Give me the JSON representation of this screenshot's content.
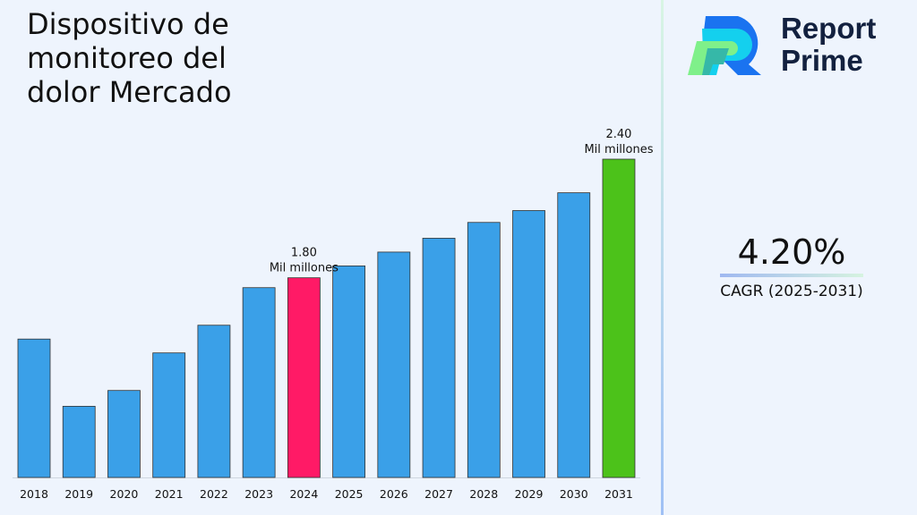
{
  "title": "Dispositivo de monitoreo del dolor Mercado",
  "logo": {
    "line1": "Report",
    "line2": "Prime"
  },
  "cagr": {
    "value": "4.20%",
    "label": "CAGR (2025-2031)"
  },
  "colors": {
    "default": "#3aa0e8",
    "highlight_2024": "#ff1a66",
    "highlight_2031": "#4cc21a",
    "background": "#eef4fd"
  },
  "chart_data": {
    "type": "bar",
    "title": "Dispositivo de monitoreo del dolor Mercado",
    "categories": [
      "2018",
      "2019",
      "2020",
      "2021",
      "2022",
      "2023",
      "2024",
      "2025",
      "2026",
      "2027",
      "2028",
      "2029",
      "2030",
      "2031"
    ],
    "values": [
      1.49,
      1.15,
      1.23,
      1.42,
      1.56,
      1.75,
      1.8,
      1.86,
      1.93,
      2.0,
      2.08,
      2.14,
      2.23,
      2.4
    ],
    "ylim": [
      0.79,
      2.4
    ],
    "grid": false,
    "annotations": [
      {
        "category": "2024",
        "value": "1.80",
        "unit": "Mil millones"
      },
      {
        "category": "2031",
        "value": "2.40",
        "unit": "Mil millones"
      }
    ]
  }
}
